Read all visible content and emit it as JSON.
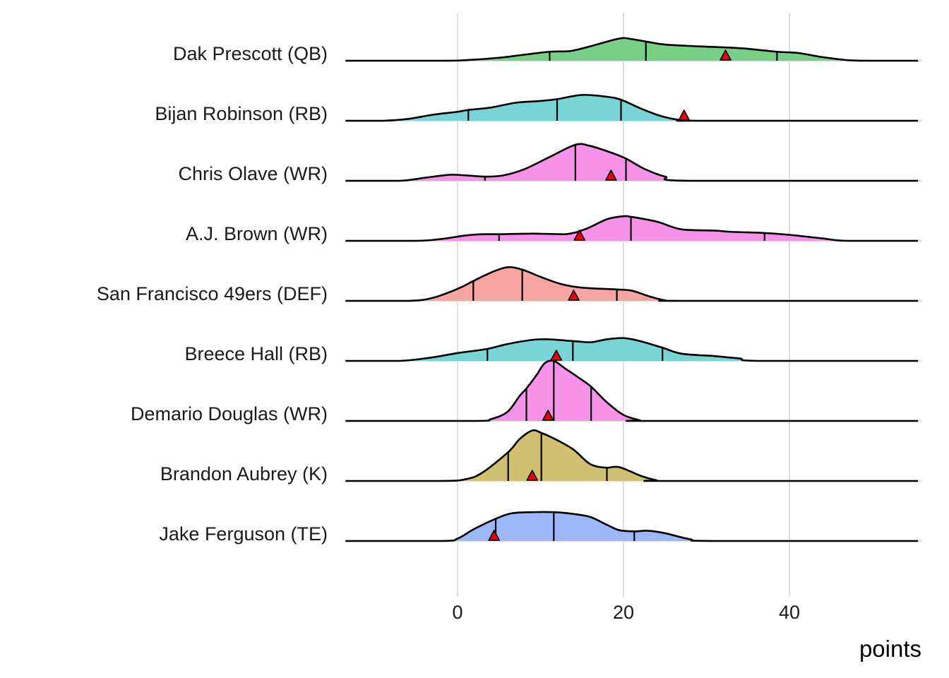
{
  "chart_data": {
    "type": "ridgeline",
    "title": "",
    "xlabel": "points",
    "ylabel": "",
    "xlim": [
      -13.5,
      55.5
    ],
    "x_ticks": [
      0,
      20,
      40
    ],
    "x_tick_labels": [
      "0",
      "20",
      "40"
    ],
    "grid": true,
    "legend": "none",
    "quantiles": [
      0.1,
      0.5,
      0.9
    ],
    "marker": "triangle",
    "marker_color": "#e8000b",
    "series": [
      {
        "name": "Dak Prescott (QB)",
        "color": "#72cc7e",
        "quantile_values": [
          11.1,
          22.7,
          38.5
        ],
        "marker_value": 32.3,
        "density": [
          [
            -13.5,
            0
          ],
          [
            -2,
            0
          ],
          [
            1,
            0.01
          ],
          [
            5,
            0.05
          ],
          [
            8,
            0.1
          ],
          [
            11.1,
            0.15
          ],
          [
            13.5,
            0.16
          ],
          [
            16,
            0.24
          ],
          [
            19.5,
            0.37
          ],
          [
            21,
            0.36
          ],
          [
            22.7,
            0.32
          ],
          [
            25,
            0.27
          ],
          [
            29,
            0.24
          ],
          [
            34,
            0.21
          ],
          [
            38.5,
            0.15
          ],
          [
            41,
            0.13
          ],
          [
            44,
            0.06
          ],
          [
            47,
            0.01
          ],
          [
            50,
            0
          ],
          [
            55.5,
            0
          ]
        ]
      },
      {
        "name": "Bijan Robinson (RB)",
        "color": "#72d2d4",
        "quantile_values": [
          1.3,
          12.0,
          19.7
        ],
        "marker_value": 27.3,
        "density": [
          [
            -13.5,
            0
          ],
          [
            -9,
            0
          ],
          [
            -6,
            0.03
          ],
          [
            -3,
            0.1
          ],
          [
            0,
            0.15
          ],
          [
            1.3,
            0.18
          ],
          [
            4,
            0.22
          ],
          [
            7,
            0.3
          ],
          [
            10,
            0.33
          ],
          [
            12,
            0.36
          ],
          [
            15,
            0.43
          ],
          [
            18,
            0.4
          ],
          [
            19.7,
            0.35
          ],
          [
            22,
            0.21
          ],
          [
            24.5,
            0.08
          ],
          [
            27,
            0.01
          ],
          [
            29,
            0
          ],
          [
            55.5,
            0
          ]
        ]
      },
      {
        "name": "Chris Olave (WR)",
        "color": "#f58ce6",
        "quantile_values": [
          3.3,
          14.2,
          20.3
        ],
        "marker_value": 18.5,
        "density": [
          [
            -13.5,
            0
          ],
          [
            -7,
            0
          ],
          [
            -4,
            0.05
          ],
          [
            -1,
            0.1
          ],
          [
            1,
            0.09
          ],
          [
            3.3,
            0.07
          ],
          [
            5.5,
            0.09
          ],
          [
            8,
            0.19
          ],
          [
            11,
            0.39
          ],
          [
            14.2,
            0.6
          ],
          [
            16,
            0.58
          ],
          [
            18.5,
            0.47
          ],
          [
            20.3,
            0.37
          ],
          [
            22.5,
            0.2
          ],
          [
            25,
            0.07
          ],
          [
            28,
            0
          ],
          [
            55.5,
            0
          ]
        ]
      },
      {
        "name": "A.J. Brown (WR)",
        "color": "#f58ce6",
        "quantile_values": [
          5.0,
          20.9,
          37.0
        ],
        "marker_value": 14.7,
        "density": [
          [
            -13.5,
            0
          ],
          [
            -5,
            0
          ],
          [
            -2,
            0.03
          ],
          [
            1,
            0.09
          ],
          [
            3,
            0.11
          ],
          [
            5,
            0.11
          ],
          [
            9,
            0.12
          ],
          [
            13,
            0.11
          ],
          [
            15.5,
            0.2
          ],
          [
            18,
            0.36
          ],
          [
            20,
            0.41
          ],
          [
            20.9,
            0.4
          ],
          [
            24,
            0.32
          ],
          [
            27,
            0.19
          ],
          [
            31,
            0.17
          ],
          [
            33,
            0.15
          ],
          [
            37,
            0.13
          ],
          [
            40,
            0.1
          ],
          [
            44,
            0.04
          ],
          [
            47,
            0
          ],
          [
            55.5,
            0
          ]
        ]
      },
      {
        "name": "San Francisco 49ers (DEF)",
        "color": "#f6a09b",
        "quantile_values": [
          1.9,
          7.8,
          19.2
        ],
        "marker_value": 14.0,
        "density": [
          [
            -13.5,
            0
          ],
          [
            -6,
            0
          ],
          [
            -3,
            0.05
          ],
          [
            0,
            0.2
          ],
          [
            1.9,
            0.33
          ],
          [
            4,
            0.47
          ],
          [
            6,
            0.56
          ],
          [
            7.8,
            0.52
          ],
          [
            10,
            0.4
          ],
          [
            12.5,
            0.28
          ],
          [
            15,
            0.22
          ],
          [
            19.2,
            0.19
          ],
          [
            21,
            0.17
          ],
          [
            23,
            0.08
          ],
          [
            25,
            0.01
          ],
          [
            27,
            0
          ],
          [
            55.5,
            0
          ]
        ]
      },
      {
        "name": "Breece Hall (RB)",
        "color": "#72d2d4",
        "quantile_values": [
          3.6,
          13.9,
          24.7
        ],
        "marker_value": 11.9,
        "density": [
          [
            -13.5,
            0
          ],
          [
            -7,
            0
          ],
          [
            -3,
            0.06
          ],
          [
            0,
            0.13
          ],
          [
            3.6,
            0.2
          ],
          [
            6,
            0.28
          ],
          [
            9,
            0.35
          ],
          [
            11,
            0.36
          ],
          [
            13.9,
            0.33
          ],
          [
            16,
            0.31
          ],
          [
            18,
            0.36
          ],
          [
            20,
            0.38
          ],
          [
            22,
            0.33
          ],
          [
            24.7,
            0.22
          ],
          [
            27,
            0.12
          ],
          [
            31,
            0.08
          ],
          [
            34,
            0.04
          ],
          [
            36.5,
            0
          ],
          [
            55.5,
            0
          ]
        ]
      },
      {
        "name": "Demario Douglas (WR)",
        "color": "#f58ce6",
        "quantile_values": [
          8.3,
          11.6,
          16.1
        ],
        "marker_value": 10.9,
        "density": [
          [
            -13.5,
            0
          ],
          [
            2,
            0
          ],
          [
            4,
            0.03
          ],
          [
            6,
            0.15
          ],
          [
            7.5,
            0.42
          ],
          [
            8.3,
            0.54
          ],
          [
            9.5,
            0.76
          ],
          [
            10.5,
            0.96
          ],
          [
            11.6,
            1.0
          ],
          [
            13,
            0.87
          ],
          [
            14.5,
            0.73
          ],
          [
            16.1,
            0.57
          ],
          [
            18,
            0.31
          ],
          [
            20,
            0.1
          ],
          [
            22,
            0.01
          ],
          [
            23,
            0
          ],
          [
            55.5,
            0
          ]
        ]
      },
      {
        "name": "Brandon Aubrey (K)",
        "color": "#cdbd6a",
        "quantile_values": [
          6.1,
          10.1,
          18.0
        ],
        "marker_value": 9.0,
        "density": [
          [
            -13.5,
            0
          ],
          [
            -2,
            0
          ],
          [
            1,
            0.03
          ],
          [
            3,
            0.14
          ],
          [
            6.1,
            0.48
          ],
          [
            7.5,
            0.7
          ],
          [
            9,
            0.84
          ],
          [
            10.1,
            0.8
          ],
          [
            12,
            0.68
          ],
          [
            14,
            0.52
          ],
          [
            16,
            0.28
          ],
          [
            18,
            0.22
          ],
          [
            19.5,
            0.23
          ],
          [
            22,
            0.09
          ],
          [
            24,
            0.01
          ],
          [
            25,
            0
          ],
          [
            55.5,
            0
          ]
        ]
      },
      {
        "name": "Jake Ferguson (TE)",
        "color": "#97b4fb",
        "quantile_values": [
          4.6,
          11.6,
          21.3
        ],
        "marker_value": 4.4,
        "density": [
          [
            -13.5,
            0
          ],
          [
            -2,
            0
          ],
          [
            0,
            0.04
          ],
          [
            2,
            0.2
          ],
          [
            4.6,
            0.37
          ],
          [
            6.5,
            0.46
          ],
          [
            9,
            0.48
          ],
          [
            11.6,
            0.48
          ],
          [
            14,
            0.45
          ],
          [
            16,
            0.4
          ],
          [
            18,
            0.27
          ],
          [
            19.5,
            0.18
          ],
          [
            21.3,
            0.16
          ],
          [
            23,
            0.17
          ],
          [
            25,
            0.13
          ],
          [
            28,
            0.03
          ],
          [
            31,
            0
          ],
          [
            55.5,
            0
          ]
        ]
      }
    ]
  }
}
